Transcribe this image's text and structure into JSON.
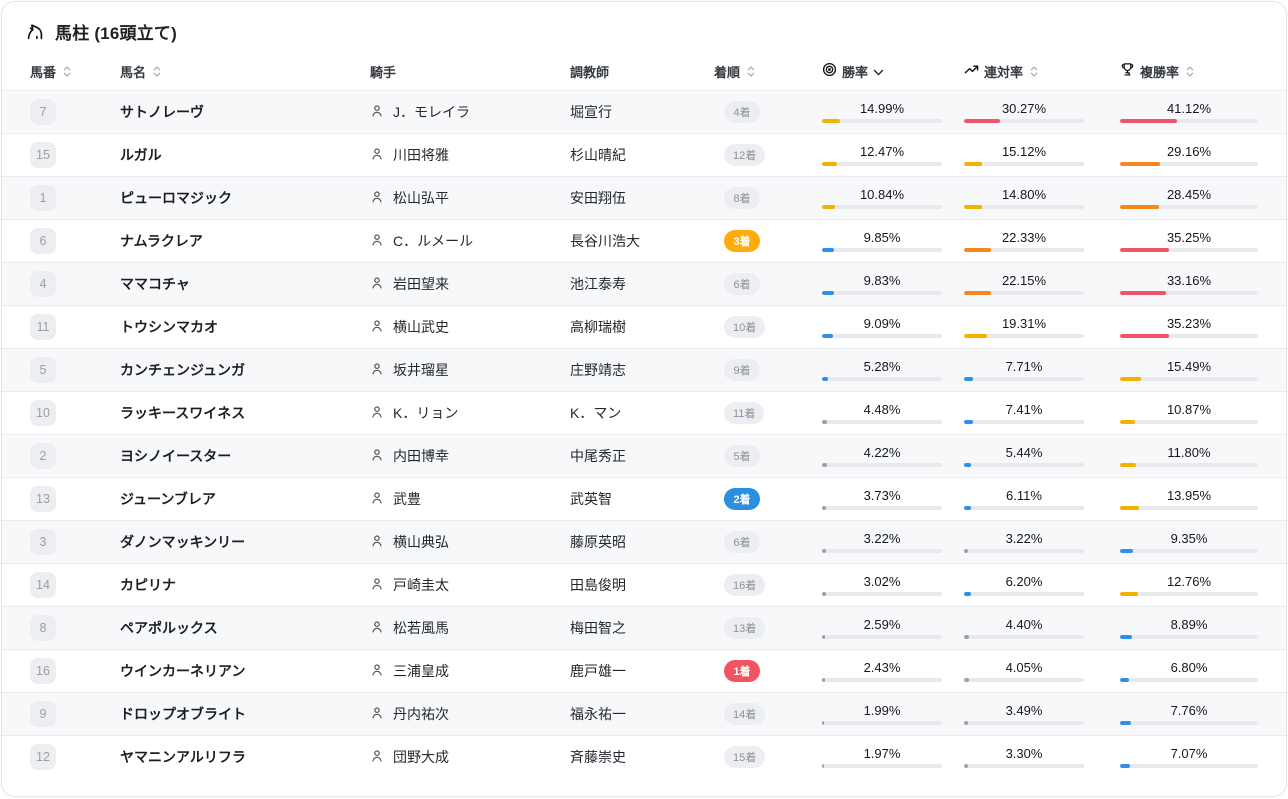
{
  "title": "馬柱 (16頭立て)",
  "colors": {
    "bar_red": "#f0546b",
    "bar_orange": "#f6871f",
    "bar_yellow": "#f2b300",
    "bar_blue": "#2e90e8",
    "bar_gray": "#9aa0a6",
    "track": "#e8e9ec",
    "badge_first": "#f2545f",
    "badge_second": "#2b8fe0",
    "badge_third": "#ffab0c",
    "badge_default_bg": "#eceef1",
    "badge_default_text": "#8b9199"
  },
  "table": {
    "headers": {
      "num": "馬番",
      "name": "馬名",
      "jockey": "騎手",
      "trainer": "調教師",
      "finish": "着順",
      "win": "勝率",
      "ren": "連対率",
      "fuku": "複勝率"
    },
    "sort": {
      "column": "win",
      "direction": "desc"
    },
    "rows": [
      {
        "num": "7",
        "name": "サトノレーヴ",
        "jockey": "J．モレイラ",
        "trainer": "堀宣行",
        "finish_rank": 4,
        "finish": "4着",
        "win": "14.99%",
        "ren": "30.27%",
        "fuku": "41.12%"
      },
      {
        "num": "15",
        "name": "ルガル",
        "jockey": "川田将雅",
        "trainer": "杉山晴紀",
        "finish_rank": 12,
        "finish": "12着",
        "win": "12.47%",
        "ren": "15.12%",
        "fuku": "29.16%"
      },
      {
        "num": "1",
        "name": "ピューロマジック",
        "jockey": "松山弘平",
        "trainer": "安田翔伍",
        "finish_rank": 8,
        "finish": "8着",
        "win": "10.84%",
        "ren": "14.80%",
        "fuku": "28.45%"
      },
      {
        "num": "6",
        "name": "ナムラクレア",
        "jockey": "C．ルメール",
        "trainer": "長谷川浩大",
        "finish_rank": 3,
        "finish": "3着",
        "win": "9.85%",
        "ren": "22.33%",
        "fuku": "35.25%"
      },
      {
        "num": "4",
        "name": "ママコチャ",
        "jockey": "岩田望来",
        "trainer": "池江泰寿",
        "finish_rank": 6,
        "finish": "6着",
        "win": "9.83%",
        "ren": "22.15%",
        "fuku": "33.16%"
      },
      {
        "num": "11",
        "name": "トウシンマカオ",
        "jockey": "横山武史",
        "trainer": "高柳瑞樹",
        "finish_rank": 10,
        "finish": "10着",
        "win": "9.09%",
        "ren": "19.31%",
        "fuku": "35.23%"
      },
      {
        "num": "5",
        "name": "カンチェンジュンガ",
        "jockey": "坂井瑠星",
        "trainer": "庄野靖志",
        "finish_rank": 9,
        "finish": "9着",
        "win": "5.28%",
        "ren": "7.71%",
        "fuku": "15.49%"
      },
      {
        "num": "10",
        "name": "ラッキースワイネス",
        "jockey": "K．リョン",
        "trainer": "K．マン",
        "finish_rank": 11,
        "finish": "11着",
        "win": "4.48%",
        "ren": "7.41%",
        "fuku": "10.87%"
      },
      {
        "num": "2",
        "name": "ヨシノイースター",
        "jockey": "内田博幸",
        "trainer": "中尾秀正",
        "finish_rank": 5,
        "finish": "5着",
        "win": "4.22%",
        "ren": "5.44%",
        "fuku": "11.80%"
      },
      {
        "num": "13",
        "name": "ジューンブレア",
        "jockey": "武豊",
        "trainer": "武英智",
        "finish_rank": 2,
        "finish": "2着",
        "win": "3.73%",
        "ren": "6.11%",
        "fuku": "13.95%"
      },
      {
        "num": "3",
        "name": "ダノンマッキンリー",
        "jockey": "横山典弘",
        "trainer": "藤原英昭",
        "finish_rank": 6,
        "finish": "6着",
        "win": "3.22%",
        "ren": "3.22%",
        "fuku": "9.35%"
      },
      {
        "num": "14",
        "name": "カピリナ",
        "jockey": "戸崎圭太",
        "trainer": "田島俊明",
        "finish_rank": 16,
        "finish": "16着",
        "win": "3.02%",
        "ren": "6.20%",
        "fuku": "12.76%"
      },
      {
        "num": "8",
        "name": "ペアポルックス",
        "jockey": "松若風馬",
        "trainer": "梅田智之",
        "finish_rank": 13,
        "finish": "13着",
        "win": "2.59%",
        "ren": "4.40%",
        "fuku": "8.89%"
      },
      {
        "num": "16",
        "name": "ウインカーネリアン",
        "jockey": "三浦皇成",
        "trainer": "鹿戸雄一",
        "finish_rank": 1,
        "finish": "1着",
        "win": "2.43%",
        "ren": "4.05%",
        "fuku": "6.80%"
      },
      {
        "num": "9",
        "name": "ドロップオブライト",
        "jockey": "丹内祐次",
        "trainer": "福永祐一",
        "finish_rank": 14,
        "finish": "14着",
        "win": "1.99%",
        "ren": "3.49%",
        "fuku": "7.76%"
      },
      {
        "num": "12",
        "name": "ヤマニンアルリフラ",
        "jockey": "団野大成",
        "trainer": "斉藤崇史",
        "finish_rank": 15,
        "finish": "15着",
        "win": "1.97%",
        "ren": "3.30%",
        "fuku": "7.07%"
      }
    ]
  }
}
